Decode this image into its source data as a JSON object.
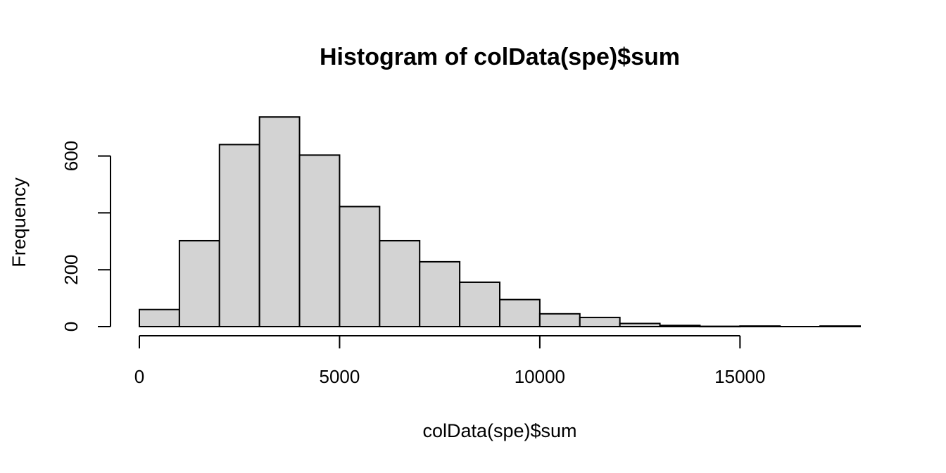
{
  "chart_data": {
    "type": "bar",
    "title": "Histogram of colData(spe)$sum",
    "xlabel": "colData(spe)$sum",
    "ylabel": "Frequency",
    "xlim": [
      0,
      18000
    ],
    "ylim": [
      0,
      740
    ],
    "x_ticks": [
      0,
      5000,
      10000,
      15000
    ],
    "x_tick_labels": [
      "0",
      "5000",
      "10000",
      "15000"
    ],
    "y_ticks": [
      0,
      200,
      400,
      600
    ],
    "y_tick_labels": [
      "0",
      "200",
      "",
      "600"
    ],
    "bin_width": 1000,
    "bins": [
      {
        "start": 0,
        "end": 1000,
        "count": 60
      },
      {
        "start": 1000,
        "end": 2000,
        "count": 302
      },
      {
        "start": 2000,
        "end": 3000,
        "count": 640
      },
      {
        "start": 3000,
        "end": 4000,
        "count": 737
      },
      {
        "start": 4000,
        "end": 5000,
        "count": 603
      },
      {
        "start": 5000,
        "end": 6000,
        "count": 422
      },
      {
        "start": 6000,
        "end": 7000,
        "count": 302
      },
      {
        "start": 7000,
        "end": 8000,
        "count": 228
      },
      {
        "start": 8000,
        "end": 9000,
        "count": 156
      },
      {
        "start": 9000,
        "end": 10000,
        "count": 95
      },
      {
        "start": 10000,
        "end": 11000,
        "count": 45
      },
      {
        "start": 11000,
        "end": 12000,
        "count": 32
      },
      {
        "start": 12000,
        "end": 13000,
        "count": 11
      },
      {
        "start": 13000,
        "end": 14000,
        "count": 4
      },
      {
        "start": 14000,
        "end": 15000,
        "count": 1
      },
      {
        "start": 15000,
        "end": 16000,
        "count": 2
      },
      {
        "start": 16000,
        "end": 17000,
        "count": 0
      },
      {
        "start": 17000,
        "end": 18000,
        "count": 2
      }
    ],
    "grid": false,
    "legend": "none"
  }
}
